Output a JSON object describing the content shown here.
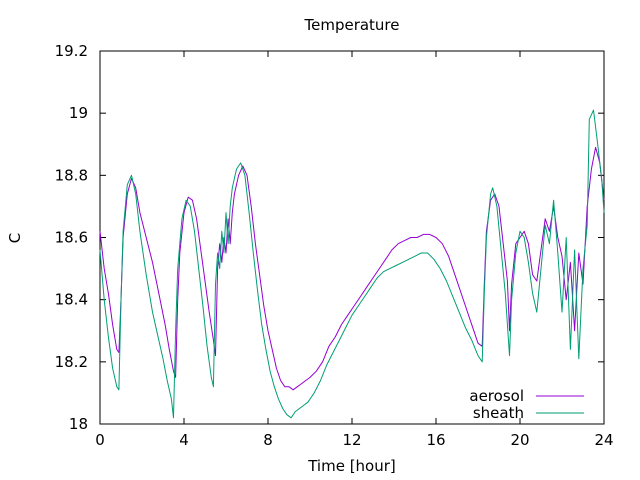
{
  "chart_data": {
    "type": "line",
    "title": "Temperature",
    "xlabel": "Time [hour]",
    "ylabel": "C",
    "xlim": [
      0,
      24
    ],
    "ylim": [
      18,
      19.2
    ],
    "xticks": [
      0,
      4,
      8,
      12,
      16,
      20,
      24
    ],
    "yticks": [
      18,
      18.2,
      18.4,
      18.6,
      18.8,
      19,
      19.2
    ],
    "ytick_labels": [
      "18",
      "18.2",
      "18.4",
      "18.6",
      "18.8",
      "19",
      "19.2"
    ],
    "grid": false,
    "legend_position": "bottom-right",
    "series": [
      {
        "name": "aerosol",
        "color": "#9400d3",
        "points": [
          [
            0,
            18.62
          ],
          [
            0.2,
            18.5
          ],
          [
            0.4,
            18.42
          ],
          [
            0.6,
            18.32
          ],
          [
            0.8,
            18.24
          ],
          [
            0.9,
            18.23
          ],
          [
            1.0,
            18.4
          ],
          [
            1.1,
            18.6
          ],
          [
            1.3,
            18.74
          ],
          [
            1.5,
            18.79
          ],
          [
            1.7,
            18.76
          ],
          [
            1.9,
            18.68
          ],
          [
            2.2,
            18.6
          ],
          [
            2.5,
            18.52
          ],
          [
            2.8,
            18.42
          ],
          [
            3.1,
            18.32
          ],
          [
            3.3,
            18.24
          ],
          [
            3.5,
            18.17
          ],
          [
            3.6,
            18.15
          ],
          [
            3.7,
            18.4
          ],
          [
            3.8,
            18.55
          ],
          [
            4.0,
            18.68
          ],
          [
            4.2,
            18.73
          ],
          [
            4.4,
            18.72
          ],
          [
            4.6,
            18.66
          ],
          [
            4.8,
            18.56
          ],
          [
            5.0,
            18.46
          ],
          [
            5.2,
            18.36
          ],
          [
            5.4,
            18.27
          ],
          [
            5.5,
            18.22
          ],
          [
            5.6,
            18.5
          ],
          [
            5.7,
            18.58
          ],
          [
            5.8,
            18.52
          ],
          [
            5.9,
            18.6
          ],
          [
            6.0,
            18.55
          ],
          [
            6.1,
            18.66
          ],
          [
            6.2,
            18.58
          ],
          [
            6.3,
            18.68
          ],
          [
            6.4,
            18.74
          ],
          [
            6.6,
            18.8
          ],
          [
            6.8,
            18.83
          ],
          [
            7.0,
            18.8
          ],
          [
            7.2,
            18.7
          ],
          [
            7.4,
            18.58
          ],
          [
            7.6,
            18.48
          ],
          [
            7.8,
            18.38
          ],
          [
            8.0,
            18.3
          ],
          [
            8.2,
            18.24
          ],
          [
            8.4,
            18.18
          ],
          [
            8.6,
            18.14
          ],
          [
            8.8,
            18.12
          ],
          [
            9.0,
            18.12
          ],
          [
            9.2,
            18.11
          ],
          [
            9.4,
            18.12
          ],
          [
            9.6,
            18.13
          ],
          [
            9.8,
            18.14
          ],
          [
            10.0,
            18.15
          ],
          [
            10.3,
            18.17
          ],
          [
            10.6,
            18.2
          ],
          [
            10.9,
            18.25
          ],
          [
            11.2,
            18.28
          ],
          [
            11.5,
            18.32
          ],
          [
            11.8,
            18.35
          ],
          [
            12.1,
            18.38
          ],
          [
            12.4,
            18.41
          ],
          [
            12.7,
            18.44
          ],
          [
            13.0,
            18.47
          ],
          [
            13.3,
            18.5
          ],
          [
            13.6,
            18.53
          ],
          [
            13.9,
            18.56
          ],
          [
            14.2,
            18.58
          ],
          [
            14.5,
            18.59
          ],
          [
            14.8,
            18.6
          ],
          [
            15.1,
            18.6
          ],
          [
            15.4,
            18.61
          ],
          [
            15.7,
            18.61
          ],
          [
            16.0,
            18.6
          ],
          [
            16.3,
            18.58
          ],
          [
            16.6,
            18.54
          ],
          [
            16.9,
            18.48
          ],
          [
            17.2,
            18.42
          ],
          [
            17.5,
            18.36
          ],
          [
            17.8,
            18.3
          ],
          [
            18.0,
            18.26
          ],
          [
            18.2,
            18.25
          ],
          [
            18.3,
            18.45
          ],
          [
            18.4,
            18.62
          ],
          [
            18.6,
            18.72
          ],
          [
            18.8,
            18.74
          ],
          [
            19.0,
            18.7
          ],
          [
            19.2,
            18.58
          ],
          [
            19.4,
            18.46
          ],
          [
            19.5,
            18.3
          ],
          [
            19.6,
            18.45
          ],
          [
            19.8,
            18.58
          ],
          [
            20.0,
            18.6
          ],
          [
            20.2,
            18.62
          ],
          [
            20.4,
            18.58
          ],
          [
            20.6,
            18.48
          ],
          [
            20.8,
            18.46
          ],
          [
            21.0,
            18.56
          ],
          [
            21.2,
            18.66
          ],
          [
            21.4,
            18.62
          ],
          [
            21.6,
            18.7
          ],
          [
            21.8,
            18.6
          ],
          [
            22.0,
            18.54
          ],
          [
            22.2,
            18.4
          ],
          [
            22.4,
            18.52
          ],
          [
            22.6,
            18.3
          ],
          [
            22.8,
            18.55
          ],
          [
            23.0,
            18.45
          ],
          [
            23.2,
            18.7
          ],
          [
            23.4,
            18.82
          ],
          [
            23.6,
            18.89
          ],
          [
            23.8,
            18.84
          ],
          [
            24.0,
            18.72
          ]
        ]
      },
      {
        "name": "sheath",
        "color": "#009e73",
        "points": [
          [
            0,
            18.56
          ],
          [
            0.2,
            18.4
          ],
          [
            0.4,
            18.28
          ],
          [
            0.6,
            18.18
          ],
          [
            0.8,
            18.12
          ],
          [
            0.9,
            18.11
          ],
          [
            1.0,
            18.4
          ],
          [
            1.1,
            18.62
          ],
          [
            1.3,
            18.77
          ],
          [
            1.5,
            18.8
          ],
          [
            1.7,
            18.74
          ],
          [
            1.9,
            18.62
          ],
          [
            2.2,
            18.48
          ],
          [
            2.5,
            18.36
          ],
          [
            2.8,
            18.27
          ],
          [
            3.0,
            18.21
          ],
          [
            3.2,
            18.14
          ],
          [
            3.4,
            18.08
          ],
          [
            3.5,
            18.02
          ],
          [
            3.6,
            18.3
          ],
          [
            3.7,
            18.5
          ],
          [
            3.9,
            18.66
          ],
          [
            4.1,
            18.72
          ],
          [
            4.3,
            18.7
          ],
          [
            4.5,
            18.62
          ],
          [
            4.7,
            18.5
          ],
          [
            4.9,
            18.38
          ],
          [
            5.1,
            18.25
          ],
          [
            5.3,
            18.15
          ],
          [
            5.4,
            18.12
          ],
          [
            5.5,
            18.45
          ],
          [
            5.6,
            18.55
          ],
          [
            5.7,
            18.5
          ],
          [
            5.8,
            18.62
          ],
          [
            5.9,
            18.55
          ],
          [
            6.0,
            18.68
          ],
          [
            6.1,
            18.58
          ],
          [
            6.2,
            18.7
          ],
          [
            6.3,
            18.76
          ],
          [
            6.5,
            18.82
          ],
          [
            6.7,
            18.84
          ],
          [
            6.9,
            18.8
          ],
          [
            7.1,
            18.68
          ],
          [
            7.3,
            18.55
          ],
          [
            7.5,
            18.43
          ],
          [
            7.7,
            18.32
          ],
          [
            7.9,
            18.24
          ],
          [
            8.1,
            18.17
          ],
          [
            8.3,
            18.12
          ],
          [
            8.5,
            18.08
          ],
          [
            8.7,
            18.05
          ],
          [
            8.9,
            18.03
          ],
          [
            9.1,
            18.02
          ],
          [
            9.3,
            18.04
          ],
          [
            9.5,
            18.05
          ],
          [
            9.7,
            18.06
          ],
          [
            9.9,
            18.07
          ],
          [
            10.2,
            18.1
          ],
          [
            10.5,
            18.14
          ],
          [
            10.8,
            18.19
          ],
          [
            11.1,
            18.23
          ],
          [
            11.4,
            18.27
          ],
          [
            11.7,
            18.31
          ],
          [
            12.0,
            18.35
          ],
          [
            12.3,
            18.38
          ],
          [
            12.6,
            18.41
          ],
          [
            12.9,
            18.44
          ],
          [
            13.2,
            18.47
          ],
          [
            13.5,
            18.49
          ],
          [
            13.8,
            18.5
          ],
          [
            14.1,
            18.51
          ],
          [
            14.4,
            18.52
          ],
          [
            14.7,
            18.53
          ],
          [
            15.0,
            18.54
          ],
          [
            15.3,
            18.55
          ],
          [
            15.6,
            18.55
          ],
          [
            15.9,
            18.53
          ],
          [
            16.2,
            18.5
          ],
          [
            16.5,
            18.46
          ],
          [
            16.8,
            18.41
          ],
          [
            17.1,
            18.36
          ],
          [
            17.4,
            18.31
          ],
          [
            17.7,
            18.27
          ],
          [
            18.0,
            18.22
          ],
          [
            18.2,
            18.2
          ],
          [
            18.3,
            18.42
          ],
          [
            18.4,
            18.6
          ],
          [
            18.6,
            18.74
          ],
          [
            18.7,
            18.76
          ],
          [
            18.9,
            18.7
          ],
          [
            19.1,
            18.56
          ],
          [
            19.3,
            18.42
          ],
          [
            19.5,
            18.22
          ],
          [
            19.6,
            18.4
          ],
          [
            19.8,
            18.55
          ],
          [
            20.0,
            18.62
          ],
          [
            20.2,
            18.6
          ],
          [
            20.4,
            18.52
          ],
          [
            20.6,
            18.42
          ],
          [
            20.8,
            18.36
          ],
          [
            21.0,
            18.5
          ],
          [
            21.2,
            18.64
          ],
          [
            21.4,
            18.58
          ],
          [
            21.6,
            18.72
          ],
          [
            21.8,
            18.55
          ],
          [
            22.0,
            18.36
          ],
          [
            22.2,
            18.6
          ],
          [
            22.4,
            18.24
          ],
          [
            22.6,
            18.56
          ],
          [
            22.8,
            18.21
          ],
          [
            23.0,
            18.5
          ],
          [
            23.2,
            18.64
          ],
          [
            23.3,
            18.98
          ],
          [
            23.5,
            19.01
          ],
          [
            23.7,
            18.9
          ],
          [
            23.9,
            18.78
          ],
          [
            24.0,
            18.68
          ]
        ]
      }
    ]
  }
}
